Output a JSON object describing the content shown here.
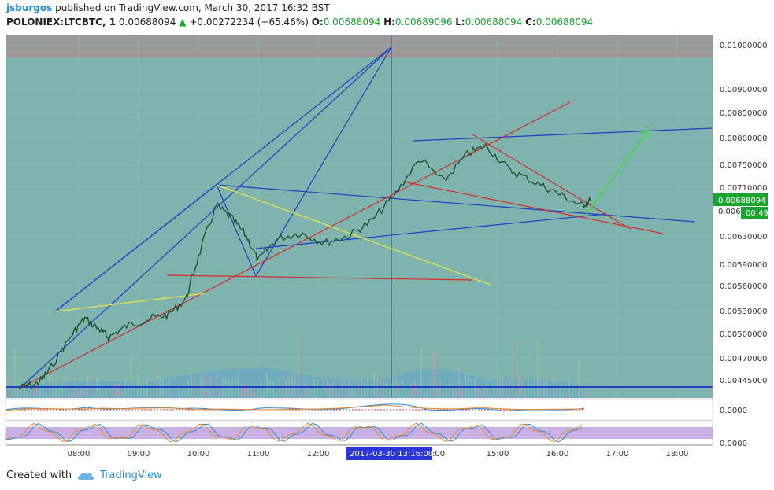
{
  "header": {
    "user": "jsburgos",
    "published_text": "published on TradingView.com, March 30, 2017 16:32 BST",
    "symbol": "POLONIEX:LTCBTC, 1",
    "last": "0.00688094",
    "change": "+0.00272234 (+65.46%)",
    "O_label": "O:",
    "O_value": "0.00688094",
    "H_label": "H:",
    "H_value": "0.00689096",
    "L_label": "L:",
    "L_value": "0.00688094",
    "C_label": "C:",
    "C_value": "0.00688094"
  },
  "footer": {
    "created_with": "Created with",
    "brand": "TradingView"
  },
  "chart_data": {
    "type": "line",
    "y_ticks": [
      "0.01000000",
      "0.00900000",
      "0.00850000",
      "0.00800000",
      "0.00750000",
      "0.00710000",
      "0.00630000",
      "0.00590000",
      "0.00560000",
      "0.00530000",
      "0.00500000",
      "0.00470000",
      "0.00445000"
    ],
    "x_ticks": [
      "08:00",
      "09:00",
      "10:00",
      "11:00",
      "12:00",
      "15:00",
      "16:00",
      "17:00",
      "18:00"
    ],
    "crosshair_time": "2017-03-30 13:16:00",
    "crosshair_partial_label": ":00",
    "last_price_label": "0.00688094",
    "partial_price_label": "0.006",
    "countdown": "00:49",
    "osc1_label": "0.0000",
    "osc2_label": "0.0000",
    "price_path": [
      [
        0.00435,
        7
      ],
      [
        0.0044,
        7.3
      ],
      [
        0.00455,
        7.5
      ],
      [
        0.005,
        7.9
      ],
      [
        0.0052,
        8.1
      ],
      [
        0.00505,
        8.35
      ],
      [
        0.00495,
        8.5
      ],
      [
        0.0051,
        8.8
      ],
      [
        0.0052,
        9.2
      ],
      [
        0.00525,
        9.5
      ],
      [
        0.00545,
        9.8
      ],
      [
        0.006,
        10.0
      ],
      [
        0.0068,
        10.3
      ],
      [
        0.0066,
        10.55
      ],
      [
        0.0063,
        10.8
      ],
      [
        0.00595,
        11.0
      ],
      [
        0.00625,
        11.3
      ],
      [
        0.00635,
        11.7
      ],
      [
        0.0062,
        12.1
      ],
      [
        0.0063,
        12.5
      ],
      [
        0.00655,
        12.9
      ],
      [
        0.007,
        13.3
      ],
      [
        0.0076,
        13.7
      ],
      [
        0.0072,
        14.1
      ],
      [
        0.0077,
        14.5
      ],
      [
        0.00785,
        14.8
      ],
      [
        0.0074,
        15.2
      ],
      [
        0.0072,
        15.6
      ],
      [
        0.007,
        16.0
      ],
      [
        0.0068,
        16.4
      ],
      [
        0.00688,
        16.55
      ]
    ]
  }
}
